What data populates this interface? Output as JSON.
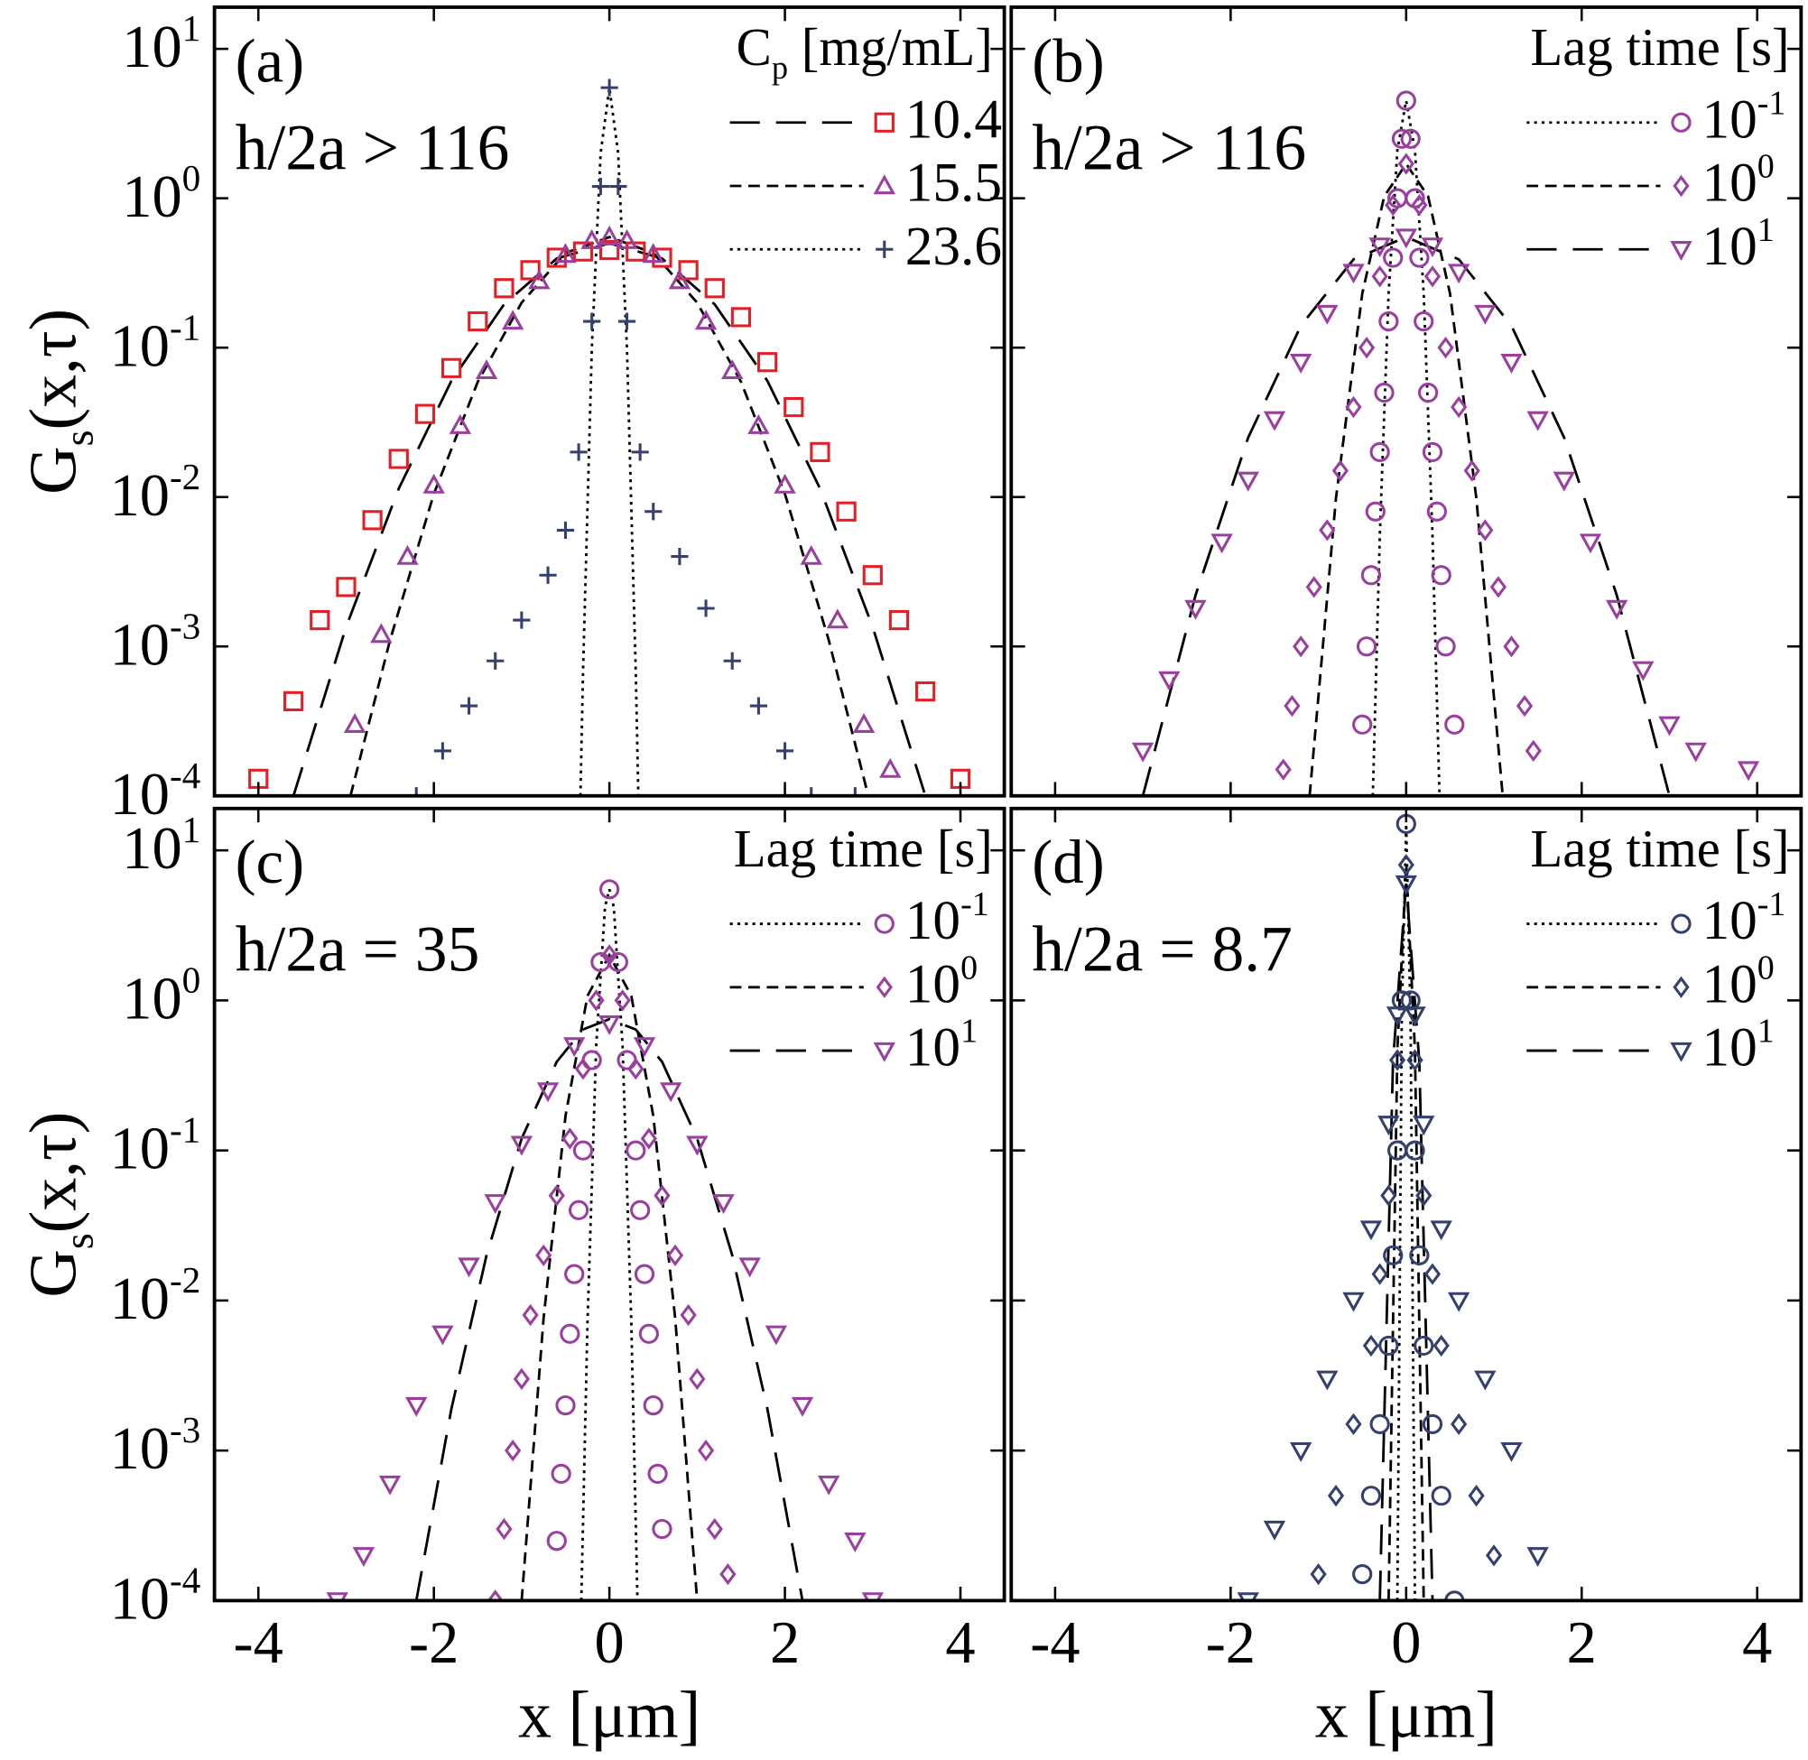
{
  "chart_data": [
    {
      "type": "scatter",
      "panel_label": "(a)",
      "annotation": "h/2a > 116",
      "legend_title": "C_p [mg/mL]",
      "ylabel": "G_s(x,τ)",
      "x_tick_labels": false,
      "y_tick_labels": true,
      "yscale": "log",
      "xlim": [
        -4.5,
        4.5
      ],
      "xticks": [
        -4,
        -2,
        0,
        2,
        4
      ],
      "ylim": [
        0.0001,
        19
      ],
      "yticks": [
        {
          "value": 10,
          "label": "10^1"
        },
        {
          "value": 1,
          "label": "10^0"
        },
        {
          "value": 0.1,
          "label": "10^-1"
        },
        {
          "value": 0.01,
          "label": "10^-2"
        },
        {
          "value": 0.001,
          "label": "10^-3"
        },
        {
          "value": 0.0001,
          "label": "10^-4"
        }
      ],
      "series": [
        {
          "name": "10.4",
          "color": "#e41e26",
          "marker": "square",
          "x": [
            -4.0,
            -3.6,
            -3.3,
            -3.0,
            -2.7,
            -2.4,
            -2.1,
            -1.8,
            -1.5,
            -1.2,
            -0.9,
            -0.6,
            -0.3,
            0,
            0.3,
            0.6,
            0.9,
            1.2,
            1.5,
            1.8,
            2.1,
            2.4,
            2.7,
            3.0,
            3.3,
            3.6,
            4.0
          ],
          "values": [
            0.00013,
            0.00043,
            0.0015,
            0.0025,
            0.007,
            0.018,
            0.036,
            0.073,
            0.15,
            0.25,
            0.33,
            0.4,
            0.44,
            0.45,
            0.44,
            0.4,
            0.33,
            0.25,
            0.16,
            0.08,
            0.04,
            0.02,
            0.008,
            0.003,
            0.0015,
            0.0005,
            0.00013
          ]
        },
        {
          "name": "15.5",
          "color": "#9a3fa0",
          "marker": "triangle-up",
          "x": [
            -2.9,
            -2.6,
            -2.3,
            -2.0,
            -1.7,
            -1.4,
            -1.1,
            -0.8,
            -0.5,
            -0.2,
            0,
            0.2,
            0.5,
            0.8,
            1.1,
            1.4,
            1.7,
            2.0,
            2.3,
            2.6,
            2.9,
            3.2
          ],
          "values": [
            0.0003,
            0.0012,
            0.004,
            0.012,
            0.03,
            0.07,
            0.15,
            0.28,
            0.42,
            0.52,
            0.55,
            0.52,
            0.42,
            0.28,
            0.15,
            0.07,
            0.03,
            0.012,
            0.004,
            0.0015,
            0.0003,
            0.00015
          ]
        },
        {
          "name": "23.6",
          "color": "#34406e",
          "marker": "plus",
          "x": [
            -2.2,
            -1.9,
            -1.6,
            -1.3,
            -1.0,
            -0.7,
            -0.5,
            -0.35,
            -0.2,
            -0.1,
            0,
            0.1,
            0.2,
            0.35,
            0.5,
            0.8,
            1.1,
            1.4,
            1.7,
            2.0,
            2.3,
            2.8
          ],
          "values": [
            0.0001,
            0.0002,
            0.0004,
            0.0008,
            0.0015,
            0.003,
            0.006,
            0.02,
            0.15,
            1.2,
            5.5,
            1.2,
            0.15,
            0.02,
            0.008,
            0.004,
            0.0018,
            0.0008,
            0.0004,
            0.0002,
            0.0001,
            0.0001
          ]
        }
      ],
      "fits": [
        {
          "dash": "long-dash",
          "x": [
            -3.6,
            -3,
            -2.4,
            -1.8,
            -1.2,
            -0.6,
            0,
            0.6,
            1.2,
            1.8,
            2.4,
            3,
            3.6
          ],
          "values": [
            0.0001,
            0.00135,
            0.0114,
            0.06,
            0.195,
            0.395,
            0.5,
            0.395,
            0.195,
            0.06,
            0.0114,
            0.00135,
            0.0001
          ]
        },
        {
          "dash": "dash",
          "x": [
            -2.95,
            -2.5,
            -2,
            -1.5,
            -1,
            -0.5,
            0,
            0.5,
            1,
            1.5,
            2,
            2.5,
            2.95
          ],
          "values": [
            0.0001,
            0.0011,
            0.0105,
            0.059,
            0.2,
            0.43,
            0.55,
            0.43,
            0.2,
            0.059,
            0.0105,
            0.0011,
            0.0001
          ]
        },
        {
          "dash": "dot",
          "x": [
            -0.33,
            -0.3,
            -0.2,
            -0.1,
            0,
            0.1,
            0.2,
            0.3,
            0.33
          ],
          "values": [
            0.0001,
            0.00069,
            0.1,
            2,
            5.5,
            2,
            0.1,
            0.00069,
            0.0001
          ]
        }
      ]
    },
    {
      "type": "scatter",
      "panel_label": "(b)",
      "annotation": "h/2a > 116",
      "legend_title": "Lag time [s]",
      "x_tick_labels": false,
      "y_tick_labels": false,
      "yscale": "log",
      "xlim": [
        -4.5,
        4.5
      ],
      "xticks": [
        -4,
        -2,
        0,
        2,
        4
      ],
      "ylim": [
        0.0001,
        19
      ],
      "yticks": [
        {
          "value": 10,
          "label": "10^1"
        },
        {
          "value": 1,
          "label": "10^0"
        },
        {
          "value": 0.1,
          "label": "10^-1"
        },
        {
          "value": 0.01,
          "label": "10^-2"
        },
        {
          "value": 0.001,
          "label": "10^-3"
        },
        {
          "value": 0.0001,
          "label": "10^-4"
        }
      ],
      "series": [
        {
          "name": "10^-1",
          "color": "#9a3fa0",
          "marker": "circle",
          "x": [
            -0.5,
            -0.45,
            -0.4,
            -0.35,
            -0.3,
            -0.25,
            -0.2,
            -0.15,
            -0.1,
            -0.05,
            0,
            0.05,
            0.1,
            0.15,
            0.2,
            0.25,
            0.3,
            0.35,
            0.4,
            0.45,
            0.55
          ],
          "values": [
            0.0003,
            0.001,
            0.003,
            0.008,
            0.02,
            0.05,
            0.15,
            0.4,
            1,
            2.5,
            4.5,
            2.5,
            1,
            0.4,
            0.15,
            0.05,
            0.02,
            0.008,
            0.003,
            0.001,
            0.0003
          ]
        },
        {
          "name": "10^0",
          "color": "#9a3fa0",
          "marker": "diamond",
          "x": [
            -1.4,
            -1.3,
            -1.2,
            -1.05,
            -0.9,
            -0.75,
            -0.6,
            -0.45,
            -0.3,
            -0.15,
            0,
            0.15,
            0.3,
            0.45,
            0.6,
            0.75,
            0.9,
            1.05,
            1.2,
            1.35,
            1.45
          ],
          "values": [
            0.00015,
            0.0004,
            0.001,
            0.0025,
            0.006,
            0.015,
            0.04,
            0.1,
            0.3,
            0.9,
            1.7,
            0.9,
            0.3,
            0.1,
            0.04,
            0.015,
            0.006,
            0.0025,
            0.001,
            0.0004,
            0.0002
          ]
        },
        {
          "name": "10^1",
          "color": "#9a3fa0",
          "marker": "triangle-down",
          "x": [
            -3.0,
            -2.7,
            -2.4,
            -2.1,
            -1.8,
            -1.5,
            -1.2,
            -0.9,
            -0.6,
            -0.3,
            0,
            0.3,
            0.6,
            0.9,
            1.2,
            1.5,
            1.8,
            2.1,
            2.4,
            2.7,
            3.0,
            3.3,
            3.9
          ],
          "values": [
            0.0002,
            0.0006,
            0.0018,
            0.005,
            0.013,
            0.033,
            0.08,
            0.17,
            0.32,
            0.48,
            0.55,
            0.48,
            0.32,
            0.17,
            0.08,
            0.033,
            0.013,
            0.005,
            0.0018,
            0.0007,
            0.0003,
            0.0002,
            0.00015
          ]
        }
      ],
      "fits": [
        {
          "dash": "dot",
          "x": [
            -0.38,
            -0.3,
            -0.2,
            -0.1,
            0,
            0.1,
            0.2,
            0.3,
            0.38
          ],
          "values": [
            0.0001,
            0.0056,
            0.23,
            2.1,
            4.5,
            2.1,
            0.23,
            0.0056,
            0.0001
          ]
        },
        {
          "dash": "dash",
          "x": [
            -1.1,
            -0.8,
            -0.5,
            -0.25,
            0,
            0.25,
            0.5,
            0.8,
            1.1
          ],
          "values": [
            0.0001,
            0.0098,
            0.23,
            1.03,
            1.7,
            1.03,
            0.23,
            0.0098,
            0.0001
          ]
        },
        {
          "dash": "long-dash",
          "x": [
            -3,
            -2.4,
            -1.8,
            -1.2,
            -0.6,
            0,
            0.6,
            1.2,
            1.8,
            2.4,
            3
          ],
          "values": [
            0.0001,
            0.0022,
            0.025,
            0.14,
            0.39,
            0.55,
            0.39,
            0.14,
            0.025,
            0.0022,
            0.0001
          ]
        }
      ]
    },
    {
      "type": "scatter",
      "panel_label": "(c)",
      "annotation": "h/2a = 35",
      "legend_title": "Lag time [s]",
      "ylabel": "G_s(x,τ)",
      "xlabel": "x [μm]",
      "x_tick_labels": true,
      "y_tick_labels": true,
      "yscale": "log",
      "xlim": [
        -4.5,
        4.5
      ],
      "xticks": [
        -4,
        -2,
        0,
        2,
        4
      ],
      "ylim": [
        0.0001,
        19
      ],
      "yticks": [
        {
          "value": 10,
          "label": "10^1"
        },
        {
          "value": 1,
          "label": "10^0"
        },
        {
          "value": 0.1,
          "label": "10^-1"
        },
        {
          "value": 0.01,
          "label": "10^-2"
        },
        {
          "value": 0.001,
          "label": "10^-3"
        },
        {
          "value": 0.0001,
          "label": "10^-4"
        }
      ],
      "series": [
        {
          "name": "10^-1",
          "color": "#9a3fa0",
          "marker": "circle",
          "x": [
            -0.6,
            -0.55,
            -0.5,
            -0.45,
            -0.4,
            -0.35,
            -0.3,
            -0.2,
            -0.1,
            0,
            0.1,
            0.2,
            0.3,
            0.35,
            0.4,
            0.45,
            0.5,
            0.55,
            0.6
          ],
          "values": [
            0.00025,
            0.0007,
            0.002,
            0.006,
            0.015,
            0.04,
            0.1,
            0.4,
            1.8,
            5.5,
            1.8,
            0.4,
            0.1,
            0.04,
            0.015,
            0.006,
            0.002,
            0.0007,
            0.0003
          ]
        },
        {
          "name": "10^0",
          "color": "#9a3fa0",
          "marker": "diamond",
          "x": [
            -1.3,
            -1.2,
            -1.1,
            -1.0,
            -0.9,
            -0.75,
            -0.6,
            -0.45,
            -0.3,
            -0.15,
            0,
            0.15,
            0.3,
            0.45,
            0.6,
            0.75,
            0.9,
            1.0,
            1.1,
            1.2,
            1.35
          ],
          "values": [
            0.0001,
            0.0003,
            0.001,
            0.003,
            0.008,
            0.02,
            0.05,
            0.12,
            0.35,
            1,
            2,
            1,
            0.35,
            0.12,
            0.05,
            0.02,
            0.008,
            0.003,
            0.001,
            0.0003,
            0.00015
          ]
        },
        {
          "name": "10^1",
          "color": "#9a3fa0",
          "marker": "triangle-down",
          "x": [
            -3.1,
            -2.8,
            -2.5,
            -2.2,
            -1.9,
            -1.6,
            -1.3,
            -1.0,
            -0.7,
            -0.4,
            0,
            0.4,
            0.7,
            1.0,
            1.3,
            1.6,
            1.9,
            2.2,
            2.5,
            2.8,
            3.0
          ],
          "values": [
            0.0001,
            0.0002,
            0.0006,
            0.002,
            0.006,
            0.017,
            0.045,
            0.11,
            0.25,
            0.5,
            0.7,
            0.5,
            0.25,
            0.11,
            0.045,
            0.017,
            0.006,
            0.002,
            0.0006,
            0.00025,
            0.0001
          ]
        }
      ],
      "fits": [
        {
          "dash": "dot",
          "x": [
            -0.32,
            -0.25,
            -0.15,
            -0.05,
            0,
            0.05,
            0.15,
            0.25,
            0.32
          ],
          "values": [
            0.0001,
            0.007,
            0.5,
            4.2,
            5.5,
            4.2,
            0.5,
            0.007,
            0.0001
          ]
        },
        {
          "dash": "dash",
          "x": [
            -1,
            -0.75,
            -0.5,
            -0.25,
            0,
            0.25,
            0.5,
            0.75,
            1
          ],
          "values": [
            0.0001,
            0.0076,
            0.17,
            1.07,
            2,
            1.07,
            0.17,
            0.0076,
            0.0001
          ]
        },
        {
          "dash": "long-dash",
          "x": [
            -2.2,
            -1.8,
            -1.4,
            -1,
            -0.6,
            -0.3,
            0,
            0.3,
            0.6,
            1,
            1.4,
            1.8,
            2.2
          ],
          "values": [
            0.0001,
            0.0019,
            0.02,
            0.12,
            0.39,
            0.64,
            0.75,
            0.64,
            0.39,
            0.12,
            0.02,
            0.0019,
            0.0001
          ]
        }
      ]
    },
    {
      "type": "scatter",
      "panel_label": "(d)",
      "annotation": "h/2a = 8.7",
      "legend_title": "Lag time [s]",
      "xlabel": "x [μm]",
      "x_tick_labels": true,
      "y_tick_labels": false,
      "yscale": "log",
      "xlim": [
        -4.5,
        4.5
      ],
      "xticks": [
        -4,
        -2,
        0,
        2,
        4
      ],
      "ylim": [
        0.0001,
        19
      ],
      "yticks": [
        {
          "value": 10,
          "label": "10^1"
        },
        {
          "value": 1,
          "label": "10^0"
        },
        {
          "value": 0.1,
          "label": "10^-1"
        },
        {
          "value": 0.01,
          "label": "10^-2"
        },
        {
          "value": 0.001,
          "label": "10^-3"
        },
        {
          "value": 0.0001,
          "label": "10^-4"
        }
      ],
      "series": [
        {
          "name": "10^-1",
          "color": "#34406e",
          "marker": "circle",
          "x": [
            -0.5,
            -0.4,
            -0.3,
            -0.2,
            -0.15,
            -0.1,
            -0.05,
            0,
            0.05,
            0.1,
            0.15,
            0.2,
            0.3,
            0.4,
            0.55
          ],
          "values": [
            0.00015,
            0.0005,
            0.0015,
            0.005,
            0.02,
            0.1,
            1,
            15,
            1,
            0.1,
            0.02,
            0.005,
            0.0015,
            0.0005,
            0.0001
          ]
        },
        {
          "name": "10^0",
          "color": "#34406e",
          "marker": "diamond",
          "x": [
            -1.0,
            -0.8,
            -0.6,
            -0.4,
            -0.3,
            -0.2,
            -0.1,
            0,
            0.1,
            0.2,
            0.3,
            0.4,
            0.6,
            0.8,
            1.0
          ],
          "values": [
            0.00015,
            0.0005,
            0.0015,
            0.005,
            0.015,
            0.05,
            0.4,
            8,
            0.4,
            0.05,
            0.015,
            0.005,
            0.0015,
            0.0005,
            0.0002
          ]
        },
        {
          "name": "10^1",
          "color": "#34406e",
          "marker": "triangle-down",
          "x": [
            -1.8,
            -1.5,
            -1.2,
            -0.9,
            -0.6,
            -0.4,
            -0.2,
            -0.1,
            0,
            0.1,
            0.2,
            0.4,
            0.6,
            0.9,
            1.2,
            1.5
          ],
          "values": [
            0.0001,
            0.0003,
            0.001,
            0.003,
            0.01,
            0.03,
            0.15,
            0.8,
            6,
            0.8,
            0.15,
            0.03,
            0.01,
            0.003,
            0.001,
            0.0002
          ]
        }
      ],
      "fits": [
        {
          "dash": "dot",
          "x": [
            -0.1,
            -0.05,
            0,
            0.05,
            0.1
          ],
          "values": [
            0.0001,
            0.76,
            15,
            0.76,
            0.0001
          ]
        },
        {
          "dash": "dash",
          "x": [
            -0.2,
            -0.1,
            0,
            0.1,
            0.2
          ],
          "values": [
            0.0001,
            0.47,
            8,
            0.47,
            0.0001
          ]
        },
        {
          "dash": "long-dash",
          "x": [
            -0.3,
            -0.15,
            0,
            0.15,
            0.3
          ],
          "values": [
            0.0001,
            0.39,
            6,
            0.39,
            0.0001
          ]
        }
      ]
    }
  ]
}
